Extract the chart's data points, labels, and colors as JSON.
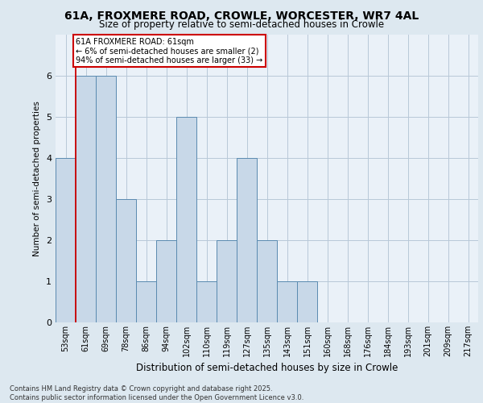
{
  "title_line1": "61A, FROXMERE ROAD, CROWLE, WORCESTER, WR7 4AL",
  "title_line2": "Size of property relative to semi-detached houses in Crowle",
  "xlabel": "Distribution of semi-detached houses by size in Crowle",
  "ylabel": "Number of semi-detached properties",
  "categories": [
    "53sqm",
    "61sqm",
    "69sqm",
    "78sqm",
    "86sqm",
    "94sqm",
    "102sqm",
    "110sqm",
    "119sqm",
    "127sqm",
    "135sqm",
    "143sqm",
    "151sqm",
    "160sqm",
    "168sqm",
    "176sqm",
    "184sqm",
    "193sqm",
    "201sqm",
    "209sqm",
    "217sqm"
  ],
  "values": [
    4,
    6,
    6,
    3,
    1,
    2,
    5,
    1,
    2,
    4,
    2,
    1,
    1,
    0,
    0,
    0,
    0,
    0,
    0,
    0,
    0
  ],
  "highlight_index": 1,
  "bar_color": "#c8d8e8",
  "bar_edge_color": "#5a8ab0",
  "annotation_box_text": "61A FROXMERE ROAD: 61sqm\n← 6% of semi-detached houses are smaller (2)\n94% of semi-detached houses are larger (33) →",
  "annotation_box_color": "#ffffff",
  "annotation_box_edge_color": "#cc0000",
  "red_line_x": 0.5,
  "ylim": [
    0,
    7
  ],
  "yticks": [
    0,
    1,
    2,
    3,
    4,
    5,
    6,
    7
  ],
  "footer_text": "Contains HM Land Registry data © Crown copyright and database right 2025.\nContains public sector information licensed under the Open Government Licence v3.0.",
  "bg_color": "#dde8f0",
  "plot_bg_color": "#eaf1f8",
  "grid_color": "#b8c8d8"
}
